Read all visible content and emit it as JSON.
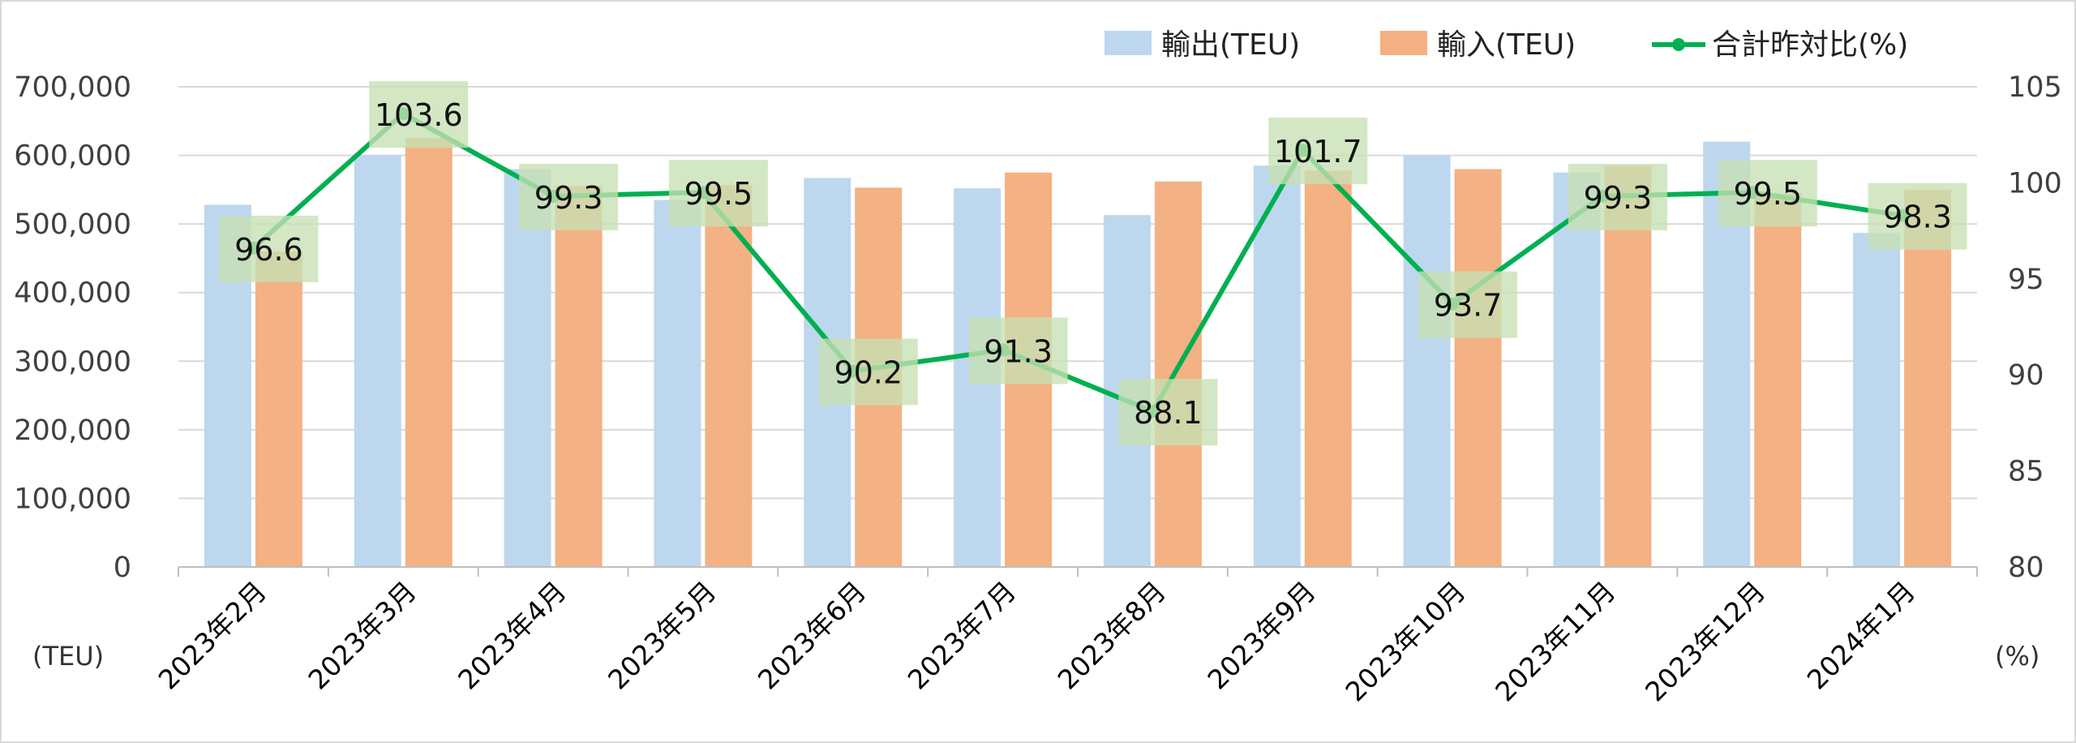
{
  "chart_data": {
    "type": "bar",
    "categories": [
      "2023年2月",
      "2023年3月",
      "2023年4月",
      "2023年5月",
      "2023年6月",
      "2023年7月",
      "2023年8月",
      "2023年9月",
      "2023年10月",
      "2023年11月",
      "2023年12月",
      "2024年1月"
    ],
    "series": [
      {
        "name": "輸出(TEU)",
        "type": "bar",
        "axis": "left",
        "color": "#bdd7ee",
        "values": [
          528000,
          600000,
          580000,
          535000,
          567000,
          552000,
          513000,
          585000,
          600000,
          575000,
          620000,
          487000
        ]
      },
      {
        "name": "輸入(TEU)",
        "type": "bar",
        "axis": "left",
        "color": "#f4b183",
        "values": [
          460000,
          625000,
          555000,
          557000,
          553000,
          575000,
          562000,
          578000,
          580000,
          585000,
          545000,
          550000
        ]
      },
      {
        "name": "合計昨対比(%)",
        "type": "line",
        "axis": "right",
        "color": "#00b050",
        "values": [
          96.6,
          103.6,
          99.3,
          99.5,
          90.2,
          91.3,
          88.1,
          101.7,
          93.7,
          99.3,
          99.5,
          98.3
        ],
        "labels": [
          "96.6",
          "103.6",
          "99.3",
          "99.5",
          "90.2",
          "91.3",
          "88.1",
          "101.7",
          "93.7",
          "99.3",
          "99.5",
          "98.3"
        ]
      }
    ],
    "y_left": {
      "min": 0,
      "max": 700000,
      "ticks": [
        "0",
        "100,000",
        "200,000",
        "300,000",
        "400,000",
        "500,000",
        "600,000",
        "700,000"
      ],
      "unit": "(TEU)"
    },
    "y_right": {
      "min": 80,
      "max": 105,
      "ticks": [
        "80",
        "85",
        "90",
        "95",
        "100",
        "105"
      ],
      "unit": "(%)"
    },
    "grid": true,
    "legend_position": "top-right",
    "label_box_color": "#c6e0b4"
  }
}
